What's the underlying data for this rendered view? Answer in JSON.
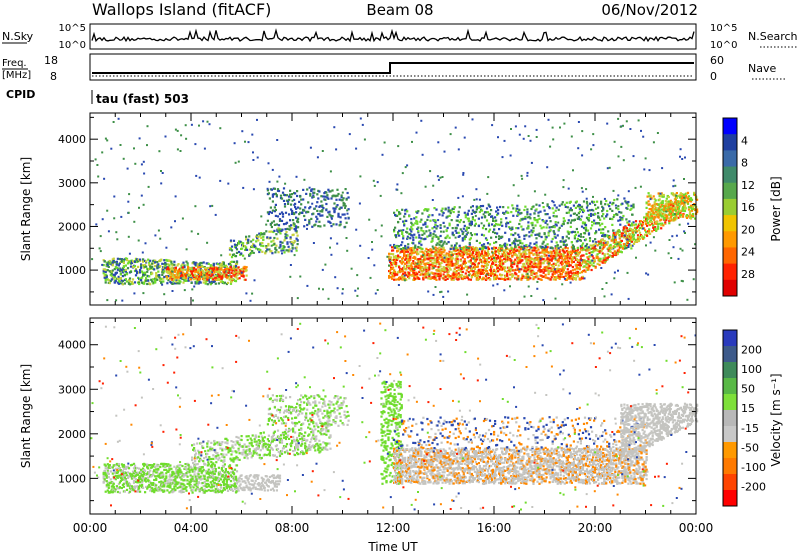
{
  "header": {
    "station": "Wallops Island (fitACF)",
    "beam": "Beam 08",
    "date": "06/Nov/2012"
  },
  "panels": {
    "nsky_label": "N.Sky",
    "nsearch_label": "N.Search",
    "nsky_ticks": [
      "10^5",
      "10^0"
    ],
    "nsearch_ticks": [
      "10^5",
      "10^0"
    ],
    "freq_label_top": "Freq.",
    "freq_label_unit": "[MHz]",
    "freq_ticks": [
      "18",
      "8"
    ],
    "nave_label": "Nave",
    "nave_ticks": [
      "60",
      "0"
    ],
    "cpid_label": "CPID",
    "cpid_value": "tau (fast) 503"
  },
  "chart_data": [
    {
      "type": "heatmap",
      "name": "power",
      "ylabel": "Slant Range [km]",
      "xlabel": "",
      "xlim": [
        0,
        24
      ],
      "ylim": [
        200,
        4600
      ],
      "y_ticks": [
        "1000",
        "2000",
        "3000",
        "4000"
      ],
      "x_tick_values": [
        0,
        4,
        8,
        12,
        16,
        20,
        24
      ],
      "colorbar_label": "Power [dB]",
      "colorbar_ticks": [
        "4",
        "8",
        "12",
        "16",
        "20",
        "24",
        "28"
      ],
      "colorbar_colors": [
        "#0000ff",
        "#1f3fa0",
        "#3a6aa8",
        "#3f8a6a",
        "#57a84c",
        "#9acd32",
        "#f0c400",
        "#ff9900",
        "#ff6600",
        "#ff2200",
        "#e00000"
      ]
    },
    {
      "type": "heatmap",
      "name": "velocity",
      "ylabel": "Slant Range [km]",
      "xlabel": "Time UT",
      "xlim": [
        0,
        24
      ],
      "ylim": [
        200,
        4600
      ],
      "y_ticks": [
        "1000",
        "2000",
        "3000",
        "4000"
      ],
      "x_ticks": [
        "00:00",
        "04:00",
        "08:00",
        "12:00",
        "16:00",
        "20:00",
        "00:00"
      ],
      "x_tick_values": [
        0,
        4,
        8,
        12,
        16,
        20,
        24
      ],
      "colorbar_label": "Velocity [m s⁻¹]",
      "colorbar_ticks": [
        "200",
        "100",
        "50",
        "15",
        "-15",
        "-50",
        "-100",
        "-200"
      ],
      "colorbar_colors": [
        "#2a3bbd",
        "#3d5a8a",
        "#3e8a5a",
        "#58b846",
        "#7ee03a",
        "#b8b8b8",
        "#c8c8c8",
        "#ff9900",
        "#ff7a00",
        "#ff4400",
        "#ff0000"
      ]
    }
  ],
  "colors": {
    "gray": "#c4c4c0",
    "green": "#6fdc2c",
    "dark_green": "#3d8f47",
    "blue": "#2848b0",
    "yellow": "#c8d23c",
    "orange": "#ff8800",
    "red": "#ff2000"
  }
}
